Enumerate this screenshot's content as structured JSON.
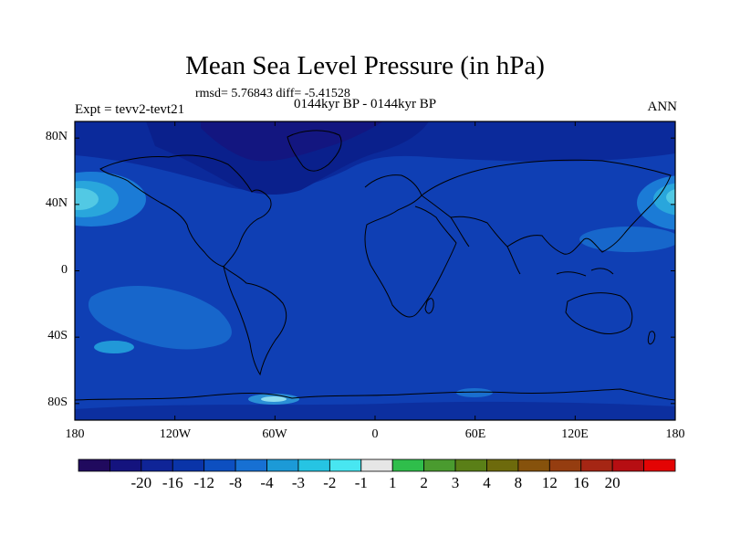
{
  "title": "Mean Sea Level Pressure (in hPa)",
  "stats": "rmsd= 5.76843 diff= -5.41528",
  "experiment": "Expt = tevv2-tevt21",
  "period": "0144kyr BP - 0144kyr BP",
  "season": "ANN",
  "map": {
    "lon_range": [
      -180,
      180
    ],
    "lat_range": [
      -90,
      90
    ],
    "y_ticks": [
      "80N",
      "40N",
      "0",
      "40S",
      "80S"
    ],
    "x_ticks": [
      "180",
      "120W",
      "60W",
      "0",
      "60E",
      "120E",
      "180"
    ]
  },
  "colorbar": {
    "labels": [
      "-20",
      "-16",
      "-12",
      "-8",
      "-4",
      "-3",
      "-2",
      "-1",
      "1",
      "2",
      "3",
      "4",
      "8",
      "12",
      "16",
      "20"
    ],
    "colors": [
      "#200a5e",
      "#14137e",
      "#0f2497",
      "#0a34a8",
      "#0d4fc0",
      "#1770d3",
      "#1c9ad7",
      "#26c4e3",
      "#48e6f1",
      "#e6e6e6",
      "#2fbe4b",
      "#4a9b2f",
      "#5a7f17",
      "#6d6a0c",
      "#86520c",
      "#953d10",
      "#a52614",
      "#b60e12",
      "#e30404"
    ]
  }
}
